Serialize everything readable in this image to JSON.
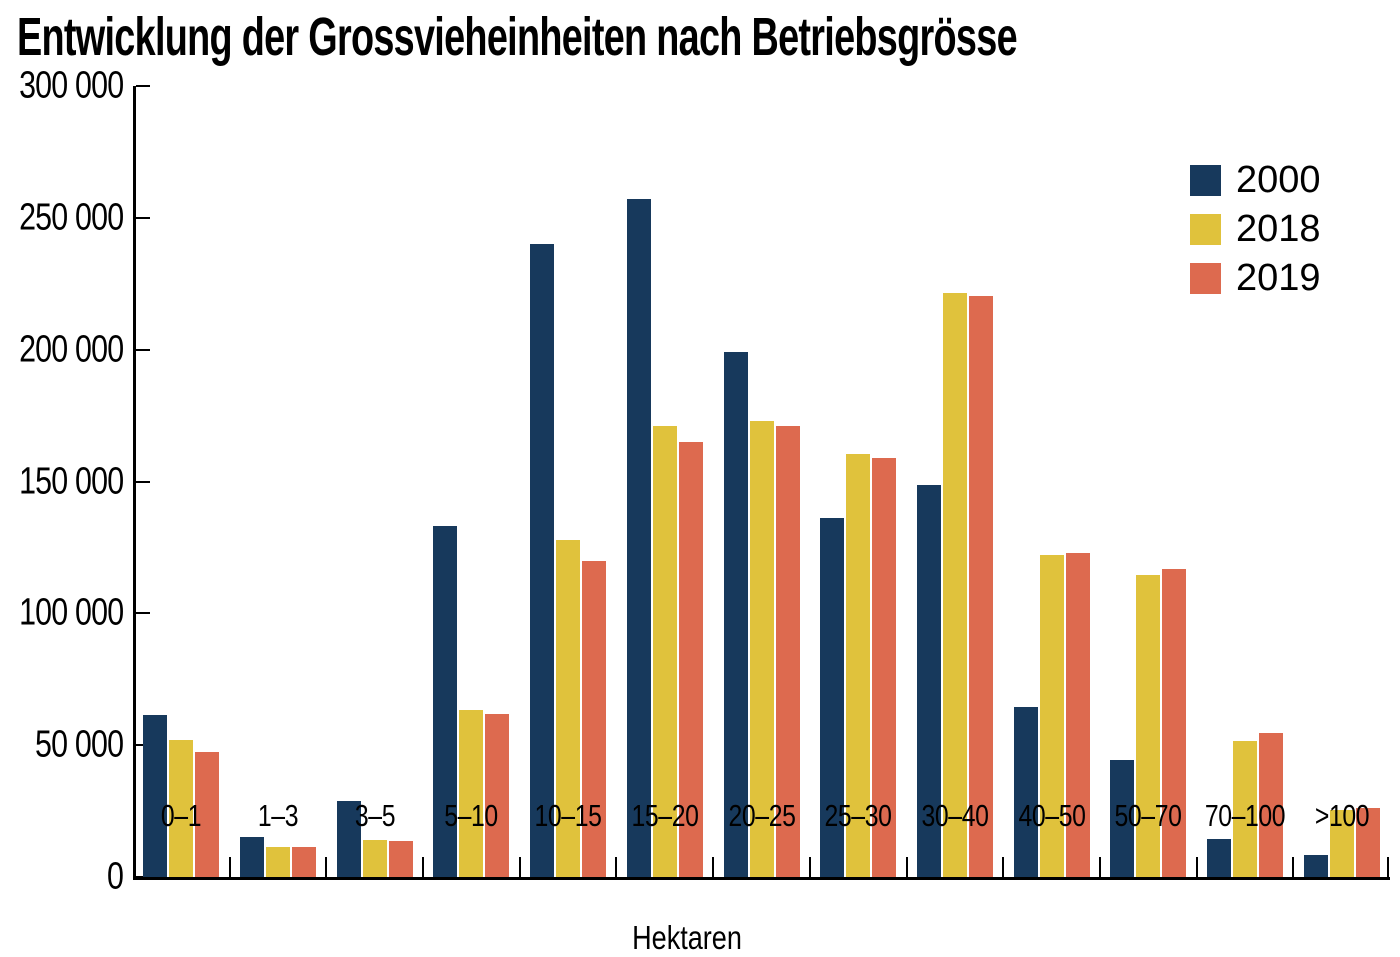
{
  "title": "Entwicklung der Grossvieheinheiten nach Betriebsgrösse",
  "chart_data": {
    "type": "bar",
    "title": "Entwicklung der Grossvieheinheiten nach Betriebsgrösse",
    "xlabel": "Hektaren",
    "ylabel": "",
    "ylim": [
      0,
      300000
    ],
    "grid": false,
    "legend_position": "top-right",
    "yticks": [
      {
        "value": 0,
        "label": "0"
      },
      {
        "value": 50000,
        "label": "50 000"
      },
      {
        "value": 100000,
        "label": "100 000"
      },
      {
        "value": 150000,
        "label": "150 000"
      },
      {
        "value": 200000,
        "label": "200 000"
      },
      {
        "value": 250000,
        "label": "250 000"
      },
      {
        "value": 300000,
        "label": "300 000"
      }
    ],
    "categories": [
      "0–1",
      "1–3",
      "3–5",
      "5–10",
      "10–15",
      "15–20",
      "20–25",
      "25–30",
      "30–40",
      "40–50",
      "50–70",
      "70–100",
      ">100"
    ],
    "series": [
      {
        "name": "2000",
        "color": "#17395c",
        "values": [
          61500,
          15000,
          29000,
          133000,
          240000,
          257000,
          199000,
          136000,
          148500,
          64500,
          44500,
          14500,
          8500
        ]
      },
      {
        "name": "2018",
        "color": "#e0c23c",
        "values": [
          52000,
          11500,
          14000,
          63500,
          128000,
          171000,
          173000,
          160500,
          221500,
          122000,
          114500,
          51500,
          25500
        ]
      },
      {
        "name": "2019",
        "color": "#dd6a4f",
        "values": [
          47500,
          11500,
          13500,
          62000,
          120000,
          165000,
          171000,
          159000,
          220500,
          123000,
          117000,
          54500,
          26000
        ]
      }
    ]
  }
}
